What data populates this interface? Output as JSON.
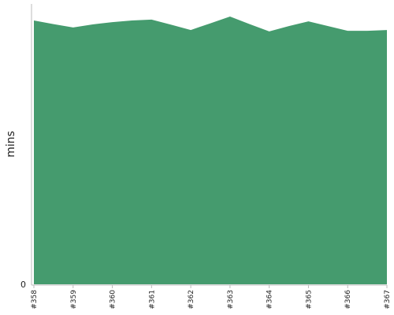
{
  "chart_data": {
    "type": "area",
    "y_label": "mins",
    "categories": [
      "#358",
      null,
      "#359",
      null,
      "#360",
      null,
      "#361",
      null,
      "#362",
      null,
      "#363",
      null,
      "#364",
      null,
      "#365",
      null,
      "#366",
      null,
      "#367"
    ],
    "values": [
      94.1,
      92.8,
      91.6,
      92.7,
      93.5,
      94.1,
      94.4,
      92.6,
      90.7,
      93.1,
      95.5,
      92.8,
      90.2,
      92.1,
      93.8,
      92.1,
      90.4,
      90.4,
      90.7
    ],
    "color": "#459b6e",
    "ylim": [
      0,
      100
    ],
    "yticks": [
      0
    ]
  }
}
